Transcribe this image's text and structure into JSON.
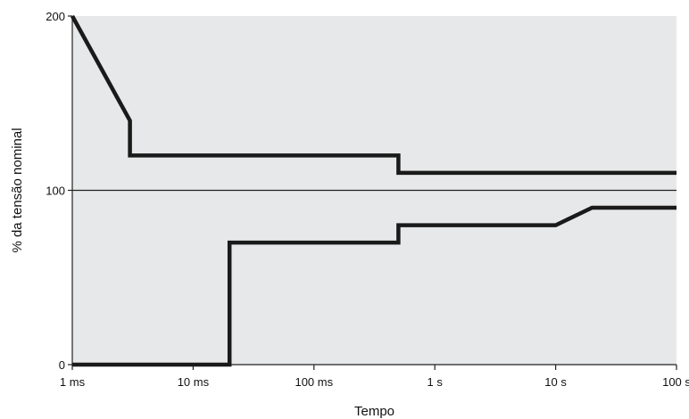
{
  "chart_data": {
    "type": "line",
    "xlabel": "Tempo",
    "ylabel": "% da tensão nominal",
    "x_scale": "log",
    "x_unit": "s",
    "xlim": [
      0.001,
      100
    ],
    "ylim": [
      0,
      200
    ],
    "x_ticks": [
      0.001,
      0.01,
      0.1,
      1,
      10,
      100
    ],
    "x_tick_labels": [
      "1 ms",
      "10 ms",
      "100 ms",
      "1 s",
      "10 s",
      "100 s"
    ],
    "y_ticks": [
      0,
      100,
      200
    ],
    "y_tick_labels": [
      "0",
      "100",
      "200"
    ],
    "reference_line_y": 100,
    "grid": false,
    "background": "#e7e8e9",
    "line_color": "#1a1a1a",
    "series": [
      {
        "points": [
          [
            0.001,
            200
          ],
          [
            0.003,
            140
          ],
          [
            0.003,
            120
          ],
          [
            0.5,
            120
          ],
          [
            0.5,
            110
          ],
          [
            100,
            110
          ]
        ]
      },
      {
        "points": [
          [
            0.001,
            0
          ],
          [
            0.02,
            0
          ],
          [
            0.02,
            70
          ],
          [
            0.5,
            70
          ],
          [
            0.5,
            80
          ],
          [
            10,
            80
          ],
          [
            20,
            90
          ],
          [
            100,
            90
          ]
        ]
      }
    ]
  }
}
